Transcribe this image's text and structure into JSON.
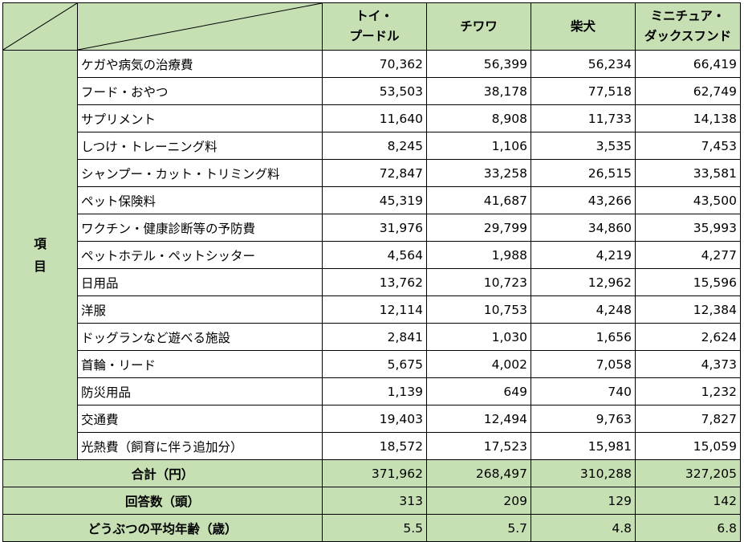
{
  "header": {
    "columns": [
      {
        "line1": "トイ・",
        "line2": "プードル"
      },
      {
        "line1": "チワワ",
        "line2": ""
      },
      {
        "line1": "柴犬",
        "line2": ""
      },
      {
        "line1": "ミニチュア・",
        "line2": "ダックスフンド"
      }
    ]
  },
  "group_label": {
    "char1": "項",
    "char2": "目"
  },
  "rows": [
    {
      "label": "ケガや病気の治療費",
      "values": [
        "70,362",
        "56,399",
        "56,234",
        "66,419"
      ]
    },
    {
      "label": "フード・おやつ",
      "values": [
        "53,503",
        "38,178",
        "77,518",
        "62,749"
      ]
    },
    {
      "label": "サプリメント",
      "values": [
        "11,640",
        "8,908",
        "11,733",
        "14,138"
      ]
    },
    {
      "label": "しつけ・トレーニング料",
      "values": [
        "8,245",
        "1,106",
        "3,535",
        "7,453"
      ]
    },
    {
      "label": "シャンプー・カット・トリミング料",
      "values": [
        "72,847",
        "33,258",
        "26,515",
        "33,581"
      ]
    },
    {
      "label": "ペット保険料",
      "values": [
        "45,319",
        "41,687",
        "43,266",
        "43,500"
      ]
    },
    {
      "label": "ワクチン・健康診断等の予防費",
      "values": [
        "31,976",
        "29,799",
        "34,860",
        "35,993"
      ]
    },
    {
      "label": "ペットホテル・ペットシッター",
      "values": [
        "4,564",
        "1,988",
        "4,219",
        "4,277"
      ]
    },
    {
      "label": "日用品",
      "values": [
        "13,762",
        "10,723",
        "12,962",
        "15,596"
      ]
    },
    {
      "label": "洋服",
      "values": [
        "12,114",
        "10,753",
        "4,248",
        "12,384"
      ]
    },
    {
      "label": "ドッグランなど遊べる施設",
      "values": [
        "2,841",
        "1,030",
        "1,656",
        "2,624"
      ]
    },
    {
      "label": "首輪・リード",
      "values": [
        "5,675",
        "4,002",
        "7,058",
        "4,373"
      ]
    },
    {
      "label": "防災用品",
      "values": [
        "1,139",
        "649",
        "740",
        "1,232"
      ]
    },
    {
      "label": "交通費",
      "values": [
        "19,403",
        "12,494",
        "9,763",
        "7,827"
      ]
    },
    {
      "label": "光熱費（飼育に伴う追加分）",
      "values": [
        "18,572",
        "17,523",
        "15,981",
        "15,059"
      ]
    }
  ],
  "footer": [
    {
      "label": "合計（円）",
      "values": [
        "371,962",
        "268,497",
        "310,288",
        "327,205"
      ]
    },
    {
      "label": "回答数（頭）",
      "values": [
        "313",
        "209",
        "129",
        "142"
      ]
    },
    {
      "label": "どうぶつの平均年齢（歳）",
      "values": [
        "5.5",
        "5.7",
        "4.8",
        "6.8"
      ]
    }
  ],
  "colors": {
    "header_green": "#c6e0b4",
    "border": "#000000"
  }
}
